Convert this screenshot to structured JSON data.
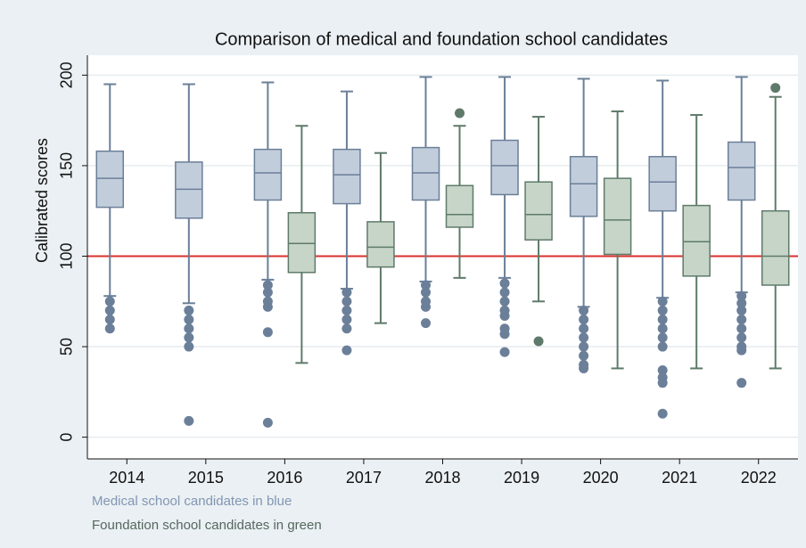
{
  "chart_data": {
    "type": "box",
    "title": "Comparison of medical and foundation school candidates",
    "y_label": "Calibrated scores",
    "categories": [
      "2014",
      "2015",
      "2016",
      "2017",
      "2018",
      "2019",
      "2020",
      "2021",
      "2022"
    ],
    "ylim": [
      -12,
      211
    ],
    "yticks": [
      0,
      50,
      100,
      150,
      200
    ],
    "grid": true,
    "reference_line": {
      "value": 100,
      "color": "#d9302c"
    },
    "series": [
      {
        "name": "Medical school candidates in blue",
        "color": "#6b7f99",
        "fill": "#c2cddc",
        "whislo": [
          78,
          74,
          87,
          82,
          86,
          88,
          72,
          77,
          80
        ],
        "q1": [
          127,
          121,
          131,
          129,
          131,
          134,
          122,
          125,
          131
        ],
        "med": [
          143,
          137,
          146,
          145,
          146,
          150,
          140,
          141,
          149
        ],
        "q3": [
          158,
          152,
          159,
          159,
          160,
          164,
          155,
          155,
          163
        ],
        "whishi": [
          195,
          195,
          196,
          191,
          199,
          199,
          198,
          197,
          199
        ],
        "outliers": [
          [
            75,
            70,
            65,
            60
          ],
          [
            70,
            65,
            60,
            55,
            50,
            9
          ],
          [
            84,
            80,
            75,
            72,
            58,
            8
          ],
          [
            80,
            75,
            70,
            65,
            60,
            48
          ],
          [
            84,
            80,
            75,
            72,
            63
          ],
          [
            85,
            80,
            75,
            70,
            67,
            60,
            57,
            47
          ],
          [
            70,
            65,
            60,
            55,
            50,
            45,
            40,
            38
          ],
          [
            75,
            70,
            65,
            60,
            55,
            50,
            37,
            33,
            30,
            13
          ],
          [
            78,
            74,
            70,
            65,
            60,
            55,
            50,
            48,
            30
          ]
        ]
      },
      {
        "name": "Foundation school candidates in green",
        "color": "#5f7a6a",
        "fill": "#c6d5c8",
        "whislo": [
          null,
          null,
          41,
          63,
          88,
          75,
          38,
          38,
          38
        ],
        "q1": [
          null,
          null,
          91,
          94,
          116,
          109,
          101,
          89,
          84
        ],
        "med": [
          null,
          null,
          107,
          105,
          123,
          123,
          120,
          108,
          100
        ],
        "q3": [
          null,
          null,
          124,
          119,
          139,
          141,
          143,
          128,
          125
        ],
        "whishi": [
          null,
          null,
          172,
          157,
          172,
          177,
          180,
          178,
          188
        ],
        "outliers": [
          [],
          [],
          [],
          [],
          [
            179
          ],
          [
            53
          ],
          [],
          [],
          [
            193
          ]
        ]
      }
    ]
  }
}
